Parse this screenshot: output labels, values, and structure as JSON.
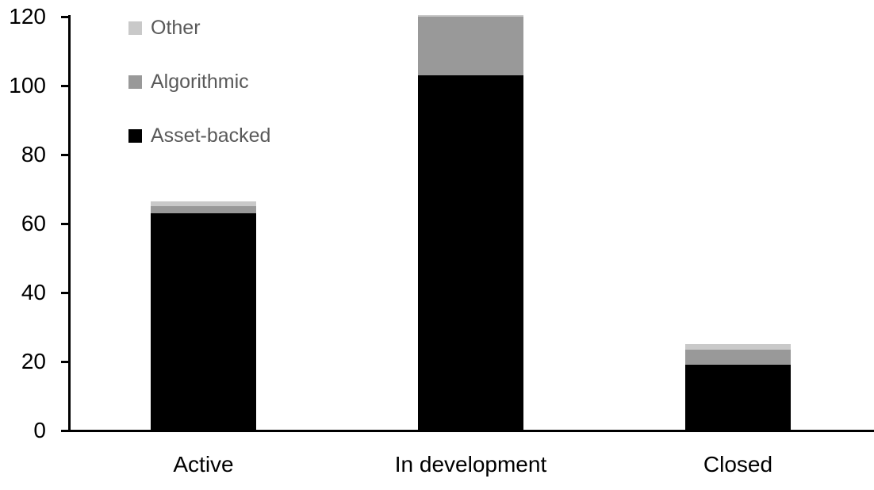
{
  "chart_data": {
    "type": "bar",
    "stacked": true,
    "categories": [
      "Active",
      "In development",
      "Closed"
    ],
    "series": [
      {
        "name": "Asset-backed",
        "color": "#000000",
        "values": [
          63,
          103,
          19
        ]
      },
      {
        "name": "Algorithmic",
        "color": "#999999",
        "values": [
          2,
          17,
          4.5
        ]
      },
      {
        "name": "Other",
        "color": "#c9c9c9",
        "values": [
          1.5,
          0.5,
          1.5
        ]
      }
    ],
    "totals": [
      66.5,
      120.5,
      25
    ],
    "legend": {
      "position": "top-left",
      "order_top_to_bottom": [
        "Other",
        "Algorithmic",
        "Asset-backed"
      ],
      "text_color": "#595959"
    },
    "ylim": [
      0,
      120
    ],
    "yticks": [
      "0",
      "20",
      "40",
      "60",
      "80",
      "100",
      "120"
    ],
    "grid": false,
    "legend_on": true,
    "xlabel": "",
    "ylabel": "",
    "axis_color": "#000000",
    "background_color": "#ffffff"
  }
}
